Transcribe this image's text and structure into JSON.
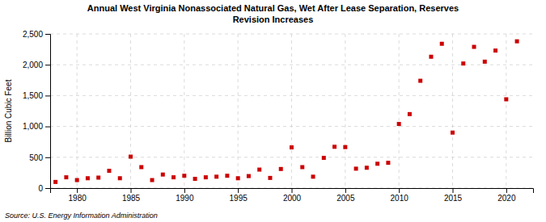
{
  "chart_data": {
    "type": "scatter",
    "title": "Annual West Virginia Nonassociated Natural Gas, Wet After Lease Separation, Reserves\nRevision Increases",
    "ylabel": "Billion Cubic Feet",
    "annotations": [
      "Source: U.S. Energy Information Administration"
    ],
    "color": "#cc0000",
    "marker": "square",
    "grid": true,
    "x": [
      1978,
      1979,
      1980,
      1981,
      1982,
      1983,
      1984,
      1985,
      1986,
      1987,
      1988,
      1989,
      1990,
      1991,
      1992,
      1993,
      1994,
      1995,
      1996,
      1997,
      1998,
      1999,
      2000,
      2001,
      2002,
      2003,
      2004,
      2005,
      2006,
      2007,
      2008,
      2009,
      2010,
      2011,
      2012,
      2013,
      2014,
      2015,
      2016,
      2017,
      2018,
      2019,
      2020,
      2021
    ],
    "values": [
      100,
      175,
      130,
      160,
      170,
      280,
      160,
      510,
      340,
      130,
      220,
      175,
      200,
      150,
      175,
      185,
      200,
      160,
      195,
      300,
      165,
      310,
      660,
      340,
      185,
      490,
      670,
      665,
      315,
      330,
      395,
      410,
      1040,
      1200,
      1740,
      2130,
      2340,
      900,
      2020,
      2290,
      2050,
      2230,
      1440,
      2380
    ],
    "xlim": [
      1977.5,
      2022.5
    ],
    "xticks": [
      1980,
      1985,
      1990,
      1995,
      2000,
      2005,
      2010,
      2015,
      2020
    ],
    "ylim": [
      0,
      2500
    ],
    "yticks": [
      0,
      500,
      {
        "value": 1000,
        "label": "1,000"
      },
      {
        "value": 1500,
        "label": "1,500"
      },
      {
        "value": 2000,
        "label": "2,000"
      },
      {
        "value": 2500,
        "label": "2,500"
      }
    ]
  }
}
